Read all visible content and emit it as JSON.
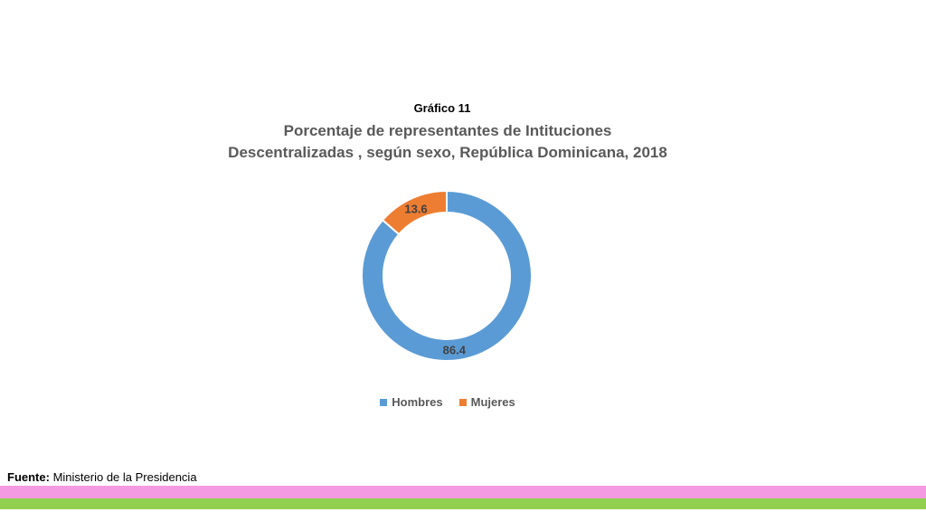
{
  "figure_label": "Gráfico 11",
  "source": {
    "key": "Fuente:",
    "value": "Ministerio de la Presidencia"
  },
  "colors": {
    "hombres": "#5b9bd5",
    "mujeres": "#ed7d31",
    "band_pink": "#f49ae3",
    "band_green": "#92d050"
  },
  "chart_data": {
    "type": "pie",
    "title_lines": [
      "Porcentaje de representantes de Intituciones",
      "Descentralizadas , según sexo, República Dominicana, 2018"
    ],
    "categories": [
      "Hombres",
      "Mujeres"
    ],
    "values": [
      86.4,
      13.6
    ],
    "value_labels": [
      "86.4",
      "13.6"
    ],
    "style": "doughnut",
    "legend_position": "bottom"
  }
}
